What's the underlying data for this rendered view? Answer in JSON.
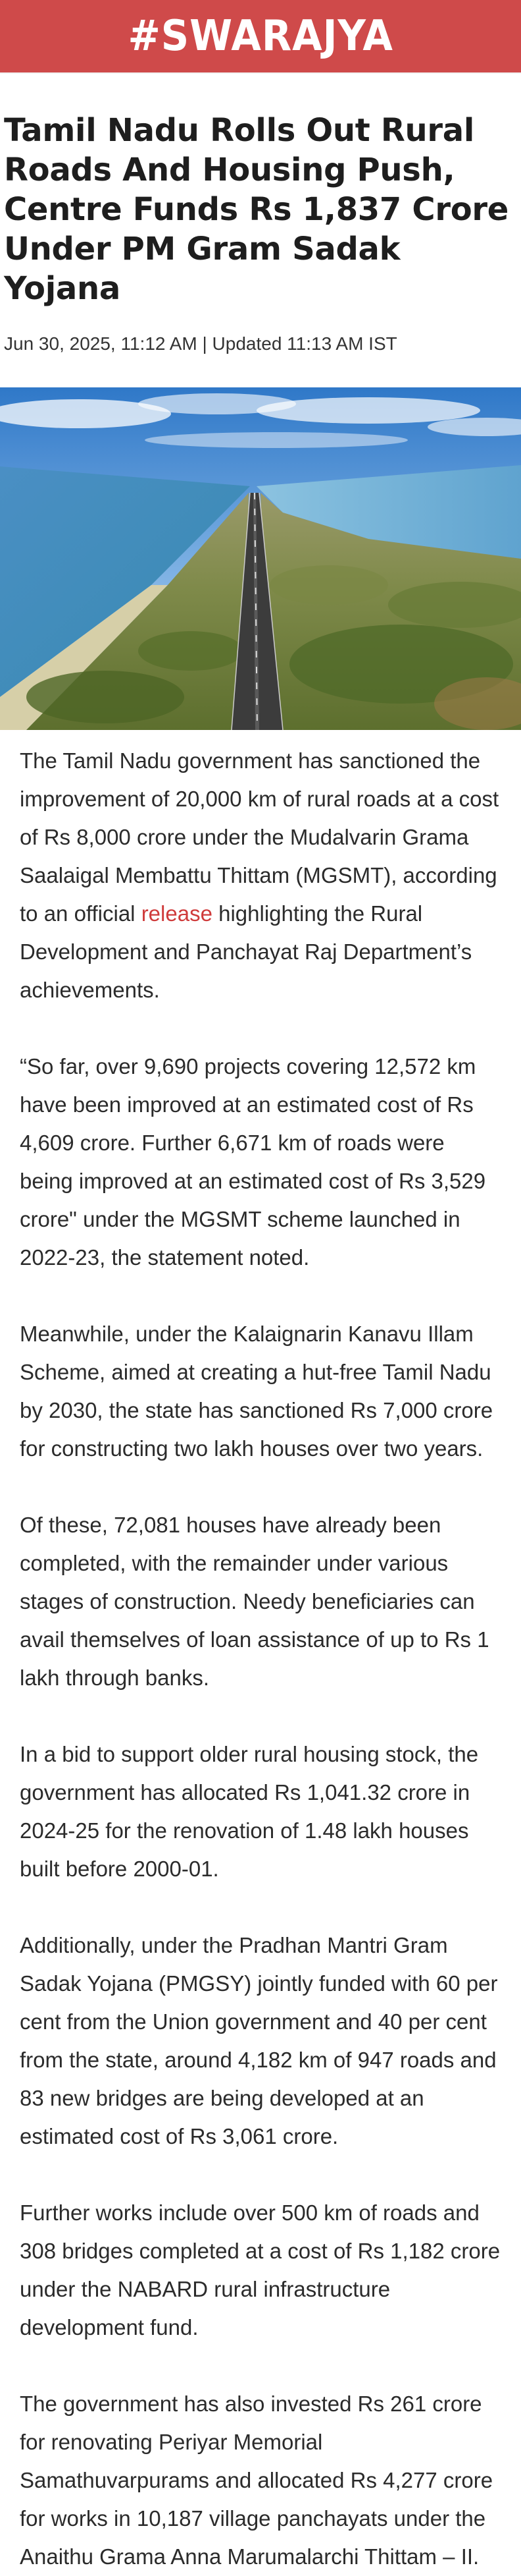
{
  "site": {
    "logo": "#SWARAJYA",
    "brand_color": "#cf4a4a"
  },
  "article": {
    "headline": "Tamil Nadu Rolls Out Rural Roads And Housing Push, Centre Funds Rs 1,837 Crore Under PM Gram Sadak Yojana",
    "meta": "Jun 30, 2025, 11:12 AM | Updated 11:13 AM IST",
    "paragraphs": {
      "p1": {
        "before": "The Tamil Nadu government has sanctioned the improvement of 20,000 km of rural roads at a cost of Rs 8,000 crore under the Mudalvarin Grama Saalaigal Membattu Thittam (MGSMT), according to an official ",
        "link": "release",
        "after": " highlighting the Rural Development and Panchayat Raj Department’s achievements."
      },
      "p2": "“So far, over 9,690 projects covering 12,572 km have been improved at an estimated cost of Rs 4,609 crore. Further 6,671 km of roads were being improved at an estimated cost of Rs 3,529 crore\" under the MGSMT scheme launched in 2022-23, the statement noted.",
      "p3": "Meanwhile, under the Kalaignarin Kanavu Illam Scheme, aimed at creating a hut-free Tamil Nadu by 2030, the state has sanctioned Rs 7,000 crore for constructing two lakh houses over two years.",
      "p4": "Of these, 72,081 houses have already been completed, with the remainder under various stages of construction. Needy beneficiaries can avail themselves of loan assistance of up to Rs 1 lakh through banks.",
      "p5": "In a bid to support older rural housing stock, the government has allocated Rs 1,041.32 crore in 2024-25 for the renovation of 1.48 lakh houses built before 2000-01.",
      "p6": "Additionally, under the Pradhan Mantri Gram Sadak Yojana (PMGSY) jointly funded with 60 per cent from the Union government and 40 per cent from the state, around 4,182 km of 947 roads and 83 new bridges are being developed at an estimated cost of Rs 3,061 crore.",
      "p7": "Further works include over 500 km of roads and 308 bridges completed at a cost of Rs 1,182 crore under the NABARD rural infrastructure development fund.",
      "p8": "The government has also invested Rs 261 crore for renovating Periyar Memorial Samathuvarpurams and allocated Rs 4,277 crore for works in 10,187 village panchayats under the Anaithu Grama Anna Marumalarchi Thittam – II."
    }
  }
}
